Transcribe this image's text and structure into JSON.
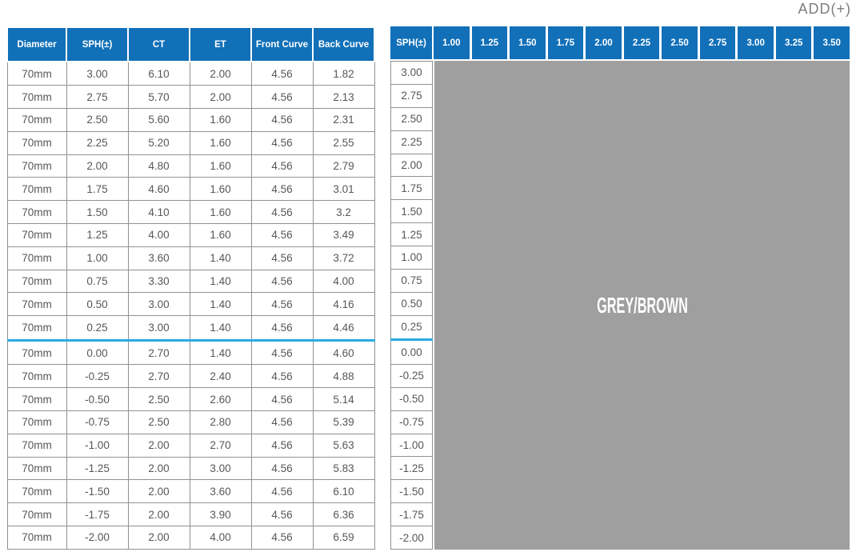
{
  "add_corner_label": "ADD(+)",
  "colors": {
    "header_blue": "#1170b8",
    "divider_blue": "#29abe2",
    "panel_grey": "#9f9fa0",
    "cell_border_grey": "#8f9194",
    "cell_text_grey": "#55575b",
    "corner_label_grey": "#7c7e81"
  },
  "left_table": {
    "headers": [
      "Diameter",
      "SPH(±)",
      "CT",
      "ET",
      "Front Curve",
      "Back Curve"
    ],
    "divider_row_index": 12,
    "rows": [
      [
        "70mm",
        "3.00",
        "6.10",
        "2.00",
        "4.56",
        "1.82"
      ],
      [
        "70mm",
        "2.75",
        "5.70",
        "2.00",
        "4.56",
        "2.13"
      ],
      [
        "70mm",
        "2.50",
        "5.60",
        "1.60",
        "4.56",
        "2.31"
      ],
      [
        "70mm",
        "2.25",
        "5.20",
        "1.60",
        "4.56",
        "2.55"
      ],
      [
        "70mm",
        "2.00",
        "4.80",
        "1.60",
        "4.56",
        "2.79"
      ],
      [
        "70mm",
        "1.75",
        "4.60",
        "1.60",
        "4.56",
        "3.01"
      ],
      [
        "70mm",
        "1.50",
        "4.10",
        "1.60",
        "4.56",
        "3.2"
      ],
      [
        "70mm",
        "1.25",
        "4.00",
        "1.60",
        "4.56",
        "3.49"
      ],
      [
        "70mm",
        "1.00",
        "3.60",
        "1.40",
        "4.56",
        "3.72"
      ],
      [
        "70mm",
        "0.75",
        "3.30",
        "1.40",
        "4.56",
        "4.00"
      ],
      [
        "70mm",
        "0.50",
        "3.00",
        "1.40",
        "4.56",
        "4.16"
      ],
      [
        "70mm",
        "0.25",
        "3.00",
        "1.40",
        "4.56",
        "4.46"
      ],
      [
        "70mm",
        "0.00",
        "2.70",
        "1.40",
        "4.56",
        "4.60"
      ],
      [
        "70mm",
        "-0.25",
        "2.70",
        "2.40",
        "4.56",
        "4.88"
      ],
      [
        "70mm",
        "-0.50",
        "2.50",
        "2.60",
        "4.56",
        "5.14"
      ],
      [
        "70mm",
        "-0.75",
        "2.50",
        "2.80",
        "4.56",
        "5.39"
      ],
      [
        "70mm",
        "-1.00",
        "2.00",
        "2.70",
        "4.56",
        "5.63"
      ],
      [
        "70mm",
        "-1.25",
        "2.00",
        "3.00",
        "4.56",
        "5.83"
      ],
      [
        "70mm",
        "-1.50",
        "2.00",
        "3.60",
        "4.56",
        "6.10"
      ],
      [
        "70mm",
        "-1.75",
        "2.00",
        "3.90",
        "4.56",
        "6.36"
      ],
      [
        "70mm",
        "-2.00",
        "2.00",
        "4.00",
        "4.56",
        "6.59"
      ]
    ]
  },
  "right_table": {
    "sph_header": "SPH(±)",
    "add_headers": [
      "1.00",
      "1.25",
      "1.50",
      "1.75",
      "2.00",
      "2.25",
      "2.50",
      "2.75",
      "3.00",
      "3.25",
      "3.50"
    ],
    "divider_row_index": 12,
    "sph_values": [
      "3.00",
      "2.75",
      "2.50",
      "2.25",
      "2.00",
      "1.75",
      "1.50",
      "1.25",
      "1.00",
      "0.75",
      "0.50",
      "0.25",
      "0.00",
      "-0.25",
      "-0.50",
      "-0.75",
      "-1.00",
      "-1.25",
      "-1.50",
      "-1.75",
      "-2.00"
    ],
    "panel_label": "GREY/BROWN"
  }
}
